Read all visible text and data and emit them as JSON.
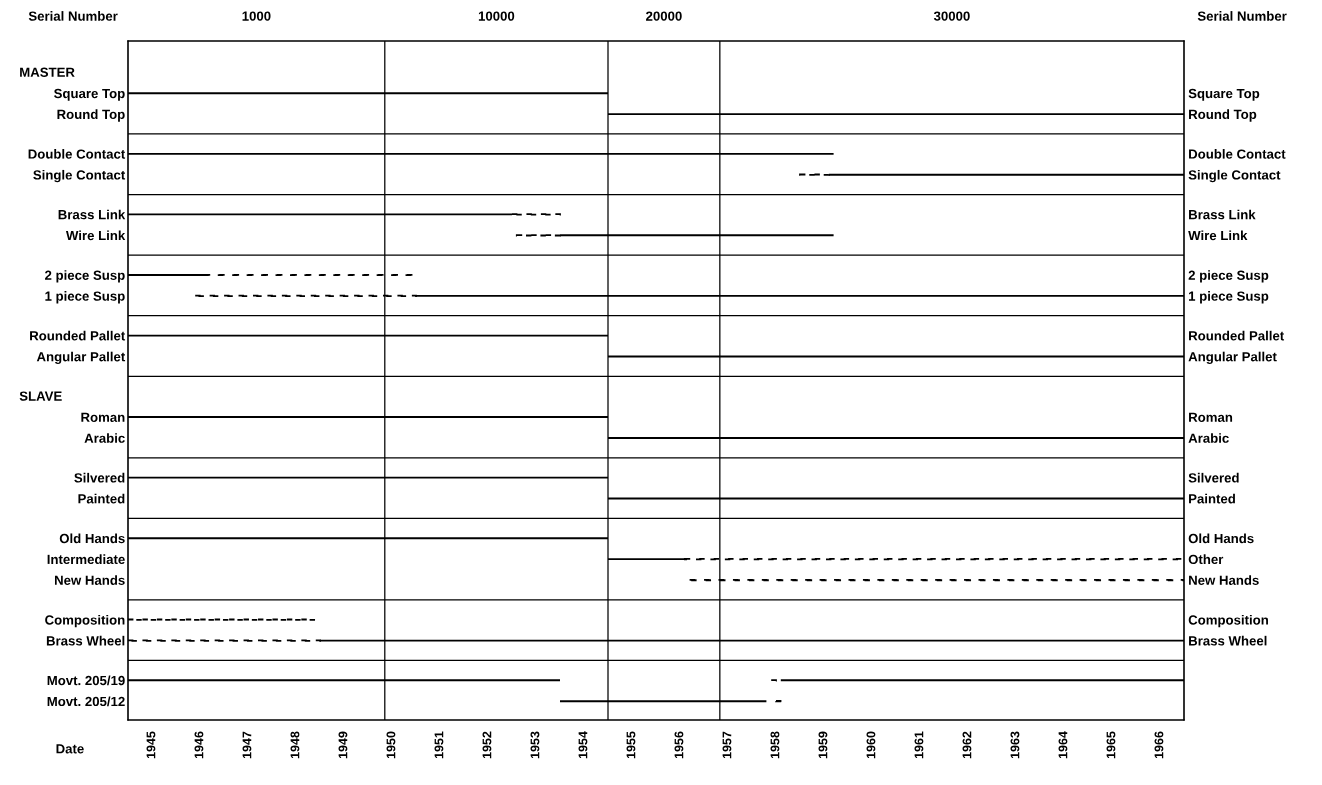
{
  "chart_data": {
    "type": "bar",
    "orientation": "horizontal",
    "xlabel": "Date",
    "x2label": "Serial Number",
    "annotations": [
      "MASTER",
      "SLAVE",
      "Serial Number",
      "1000",
      "10000",
      "20000",
      "30000"
    ],
    "categories": [
      "Square Top",
      "Round Top",
      "Double Contact",
      "Single Contact",
      "Brass Link",
      "Wire Link",
      "2 piece Susp",
      "1 piece Susp",
      "Rounded Pallet",
      "Angular Pallet",
      "Roman",
      "Arabic",
      "Silvered",
      "Painted",
      "Old Hands",
      "Intermediate",
      "New Hands",
      "Composition",
      "Brass Wheel",
      "Movt. 205/19",
      "Movt. 205/12"
    ],
    "y2_categories": [
      "Square Top",
      "Round Top",
      "Double Contact",
      "Single Contact",
      "Brass Link",
      "Wire Link",
      "2 piece Susp",
      "1 piece Susp",
      "Rounded Pallet",
      "Angular Pallet",
      "Roman",
      "Arabic",
      "Silvered",
      "Painted",
      "Old Hands",
      "Other",
      "New Hands",
      "Composition",
      "Brass Wheel",
      null,
      null
    ],
    "series": [
      {
        "color": "#000000",
        "line_style": "solid",
        "base": [
          1945,
          1955,
          1945,
          1959.6,
          1945,
          1954.0,
          1945,
          1951.0,
          1945,
          1955,
          1945,
          1955,
          1945,
          1955,
          1945,
          1955,
          null,
          null,
          1949.0,
          1945,
          1954.0
        ],
        "values": [
          10.0,
          12.0,
          14.7,
          7.4,
          8.0,
          5.7,
          1.6,
          16.0,
          10.0,
          12.0,
          10.0,
          12.0,
          10.0,
          12.0,
          10.0,
          1.6,
          null,
          null,
          18.0,
          9.0,
          4.3
        ]
      },
      {
        "color": "#000000",
        "line_style": "solid",
        "base": [
          null,
          null,
          null,
          null,
          null,
          null,
          null,
          null,
          null,
          null,
          null,
          null,
          null,
          null,
          null,
          null,
          null,
          null,
          null,
          1958.6,
          null
        ],
        "values": [
          null,
          null,
          null,
          null,
          null,
          null,
          null,
          null,
          null,
          null,
          null,
          null,
          null,
          null,
          null,
          null,
          null,
          null,
          null,
          8.4,
          null
        ]
      },
      {
        "color": "#000000",
        "line_style": "dashed",
        "base": [
          null,
          null,
          null,
          1959.0,
          1953.0,
          1953.1,
          1946.6,
          1946.4,
          null,
          null,
          null,
          null,
          null,
          null,
          null,
          1956.6,
          1956.7,
          1945,
          1945,
          1958.4,
          1958.5
        ],
        "values": [
          null,
          null,
          null,
          0.6,
          1.0,
          0.9,
          4.4,
          4.6,
          null,
          null,
          null,
          null,
          null,
          null,
          null,
          10.4,
          10.3,
          3.9,
          4.0,
          0.1,
          0.2
        ]
      }
    ],
    "xlim": [
      1945,
      1967
    ],
    "xticks": [
      {
        "value": 1945.5,
        "label": "1945"
      },
      {
        "value": 1946.5,
        "label": "1946"
      },
      {
        "value": 1947.5,
        "label": "1947"
      },
      {
        "value": 1948.5,
        "label": "1948"
      },
      {
        "value": 1949.5,
        "label": "1949"
      },
      {
        "value": 1950.5,
        "label": "1950"
      },
      {
        "value": 1951.5,
        "label": "1951"
      },
      {
        "value": 1952.5,
        "label": "1952"
      },
      {
        "value": 1953.5,
        "label": "1953"
      },
      {
        "value": 1954.5,
        "label": "1954"
      },
      {
        "value": 1955.5,
        "label": "1955"
      },
      {
        "value": 1956.5,
        "label": "1956"
      },
      {
        "value": 1957.5,
        "label": "1957"
      },
      {
        "value": 1958.5,
        "label": "1958"
      },
      {
        "value": 1959.5,
        "label": "1959"
      },
      {
        "value": 1960.5,
        "label": "1960"
      },
      {
        "value": 1961.5,
        "label": "1961"
      },
      {
        "value": 1962.5,
        "label": "1962"
      },
      {
        "value": 1963.5,
        "label": "1963"
      },
      {
        "value": 1964.5,
        "label": "1964"
      },
      {
        "value": 1965.5,
        "label": "1965"
      },
      {
        "value": 1966.5,
        "label": "1966"
      }
    ],
    "ref_lines": [
      {
        "axis": "x",
        "value": 1950.35
      },
      {
        "axis": "x",
        "value": 1955.0
      },
      {
        "axis": "x",
        "value": 1957.33
      }
    ]
  }
}
